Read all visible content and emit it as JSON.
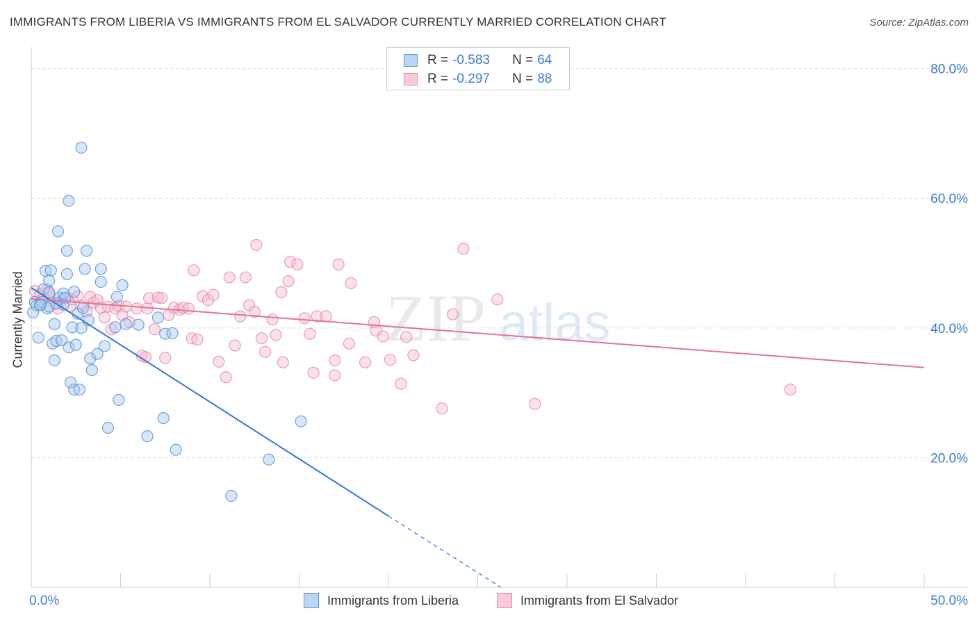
{
  "title": "IMMIGRANTS FROM LIBERIA VS IMMIGRANTS FROM EL SALVADOR CURRENTLY MARRIED CORRELATION CHART",
  "source": "Source: ZipAtlas.com",
  "watermark": {
    "zip": "ZIP",
    "atlas": "atlas"
  },
  "colors": {
    "blue_fill": "#a9c9f0",
    "blue_stroke": "#5b93d8",
    "blue_line": "#2f78d6",
    "pink_fill": "#f7bfd0",
    "pink_stroke": "#e889a8",
    "pink_line": "#e3709a",
    "axis_value": "#3c7bd4",
    "grid": "#dddddd"
  },
  "legend": {
    "r_label": "R =",
    "n_label": "N =",
    "items": [
      {
        "r": "-0.583",
        "n": "64"
      },
      {
        "r": "-0.297",
        "n": "88"
      }
    ]
  },
  "chart_data": {
    "type": "scatter",
    "title": "IMMIGRANTS FROM LIBERIA VS IMMIGRANTS FROM EL SALVADOR CURRENTLY MARRIED CORRELATION CHART",
    "xlabel": "",
    "ylabel": "Currently Married",
    "xlim": [
      0,
      50
    ],
    "ylim": [
      0,
      82
    ],
    "x_tick_labels": [
      "0.0%",
      "50.0%"
    ],
    "y_ticks": [
      20,
      40,
      60,
      80
    ],
    "y_tick_labels": [
      "20.0%",
      "40.0%",
      "60.0%",
      "80.0%"
    ],
    "grid": true,
    "legend_position": "top-center",
    "series": [
      {
        "name": "Immigrants from Liberia",
        "color": "blue",
        "trend": {
          "x": [
            0,
            20
          ],
          "y": [
            46.2,
            11.0
          ],
          "dashed_to": [
            26.3,
            0
          ]
        },
        "points": [
          [
            0.1,
            42.4
          ],
          [
            0.2,
            44.0
          ],
          [
            0.3,
            43.5
          ],
          [
            0.4,
            38.5
          ],
          [
            0.5,
            43.7
          ],
          [
            0.6,
            44.0
          ],
          [
            0.7,
            46.0
          ],
          [
            0.8,
            48.8
          ],
          [
            0.9,
            43.0
          ],
          [
            1.0,
            47.3
          ],
          [
            1.0,
            45.5
          ],
          [
            1.1,
            48.9
          ],
          [
            1.2,
            37.6
          ],
          [
            1.3,
            35.0
          ],
          [
            1.3,
            40.6
          ],
          [
            1.4,
            38.0
          ],
          [
            1.5,
            54.9
          ],
          [
            1.6,
            44.7
          ],
          [
            1.7,
            38.1
          ],
          [
            1.8,
            45.3
          ],
          [
            1.9,
            44.6
          ],
          [
            2.0,
            48.3
          ],
          [
            2.0,
            51.9
          ],
          [
            2.1,
            37.0
          ],
          [
            2.2,
            31.6
          ],
          [
            2.3,
            40.1
          ],
          [
            2.4,
            45.6
          ],
          [
            2.4,
            30.5
          ],
          [
            2.5,
            37.4
          ],
          [
            2.6,
            42.2
          ],
          [
            2.7,
            30.5
          ],
          [
            2.8,
            40.0
          ],
          [
            2.8,
            67.8
          ],
          [
            2.9,
            43.1
          ],
          [
            3.0,
            49.1
          ],
          [
            3.1,
            51.9
          ],
          [
            3.2,
            41.2
          ],
          [
            3.3,
            35.3
          ],
          [
            3.4,
            33.5
          ],
          [
            3.7,
            36.0
          ],
          [
            3.9,
            49.1
          ],
          [
            3.9,
            47.1
          ],
          [
            4.1,
            37.2
          ],
          [
            4.3,
            24.6
          ],
          [
            4.7,
            40.1
          ],
          [
            4.8,
            44.8
          ],
          [
            4.9,
            28.9
          ],
          [
            5.1,
            46.6
          ],
          [
            5.3,
            40.6
          ],
          [
            6.0,
            40.5
          ],
          [
            6.5,
            23.3
          ],
          [
            7.1,
            41.6
          ],
          [
            7.4,
            26.1
          ],
          [
            7.5,
            39.1
          ],
          [
            7.9,
            39.2
          ],
          [
            8.1,
            21.2
          ],
          [
            2.1,
            59.6
          ],
          [
            1.8,
            43.6
          ],
          [
            11.2,
            14.1
          ],
          [
            13.3,
            19.7
          ],
          [
            15.1,
            25.6
          ],
          [
            1.0,
            43.3
          ],
          [
            0.5,
            43.5
          ],
          [
            1.4,
            43.8
          ]
        ]
      },
      {
        "name": "Immigrants from El Salvador",
        "color": "pink",
        "trend": {
          "x": [
            0,
            50
          ],
          "y": [
            44.5,
            33.9
          ]
        },
        "points": [
          [
            0.2,
            45.7
          ],
          [
            0.5,
            45.2
          ],
          [
            0.7,
            44.6
          ],
          [
            0.9,
            45.9
          ],
          [
            1.0,
            45.3
          ],
          [
            1.3,
            43.7
          ],
          [
            1.5,
            43.0
          ],
          [
            1.8,
            44.6
          ],
          [
            2.0,
            44.7
          ],
          [
            2.2,
            43.4
          ],
          [
            2.3,
            44.4
          ],
          [
            2.6,
            44.9
          ],
          [
            2.8,
            43.4
          ],
          [
            3.1,
            42.5
          ],
          [
            3.3,
            44.8
          ],
          [
            3.5,
            43.9
          ],
          [
            3.7,
            44.3
          ],
          [
            3.9,
            43.1
          ],
          [
            4.1,
            41.6
          ],
          [
            4.3,
            43.3
          ],
          [
            4.5,
            39.8
          ],
          [
            4.7,
            43.0
          ],
          [
            4.9,
            43.4
          ],
          [
            5.1,
            42.0
          ],
          [
            5.3,
            43.3
          ],
          [
            5.5,
            40.9
          ],
          [
            5.9,
            43.0
          ],
          [
            6.2,
            35.7
          ],
          [
            6.4,
            35.5
          ],
          [
            6.5,
            43.0
          ],
          [
            6.6,
            44.6
          ],
          [
            6.9,
            39.8
          ],
          [
            7.1,
            44.7
          ],
          [
            7.3,
            44.6
          ],
          [
            7.5,
            35.4
          ],
          [
            7.7,
            42.0
          ],
          [
            8.0,
            43.1
          ],
          [
            8.3,
            42.8
          ],
          [
            8.5,
            43.1
          ],
          [
            8.8,
            43.0
          ],
          [
            9.0,
            38.4
          ],
          [
            9.1,
            48.9
          ],
          [
            9.3,
            38.2
          ],
          [
            9.6,
            44.9
          ],
          [
            9.9,
            44.3
          ],
          [
            10.2,
            45.1
          ],
          [
            10.5,
            34.8
          ],
          [
            10.9,
            32.4
          ],
          [
            11.1,
            47.8
          ],
          [
            11.4,
            37.3
          ],
          [
            11.7,
            41.8
          ],
          [
            12.0,
            47.8
          ],
          [
            12.2,
            43.5
          ],
          [
            12.5,
            42.5
          ],
          [
            12.6,
            52.8
          ],
          [
            12.9,
            38.4
          ],
          [
            13.1,
            36.3
          ],
          [
            13.5,
            41.3
          ],
          [
            13.7,
            38.9
          ],
          [
            14.0,
            45.5
          ],
          [
            14.1,
            34.7
          ],
          [
            14.4,
            47.2
          ],
          [
            14.5,
            50.2
          ],
          [
            14.9,
            49.8
          ],
          [
            15.3,
            41.5
          ],
          [
            15.6,
            39.1
          ],
          [
            15.8,
            33.1
          ],
          [
            16.0,
            41.8
          ],
          [
            16.5,
            41.8
          ],
          [
            17.0,
            32.7
          ],
          [
            17.0,
            35.0
          ],
          [
            17.2,
            49.8
          ],
          [
            17.8,
            37.6
          ],
          [
            17.9,
            46.9
          ],
          [
            18.7,
            34.7
          ],
          [
            19.2,
            40.9
          ],
          [
            19.3,
            39.6
          ],
          [
            19.7,
            38.7
          ],
          [
            20.1,
            35.1
          ],
          [
            20.7,
            31.4
          ],
          [
            21.0,
            38.6
          ],
          [
            21.4,
            35.8
          ],
          [
            23.0,
            27.6
          ],
          [
            23.6,
            42.1
          ],
          [
            24.2,
            52.2
          ],
          [
            26.1,
            44.4
          ],
          [
            28.2,
            28.3
          ],
          [
            42.5,
            30.5
          ]
        ]
      }
    ]
  },
  "bottom_legend": [
    "Immigrants from Liberia",
    "Immigrants from El Salvador"
  ]
}
